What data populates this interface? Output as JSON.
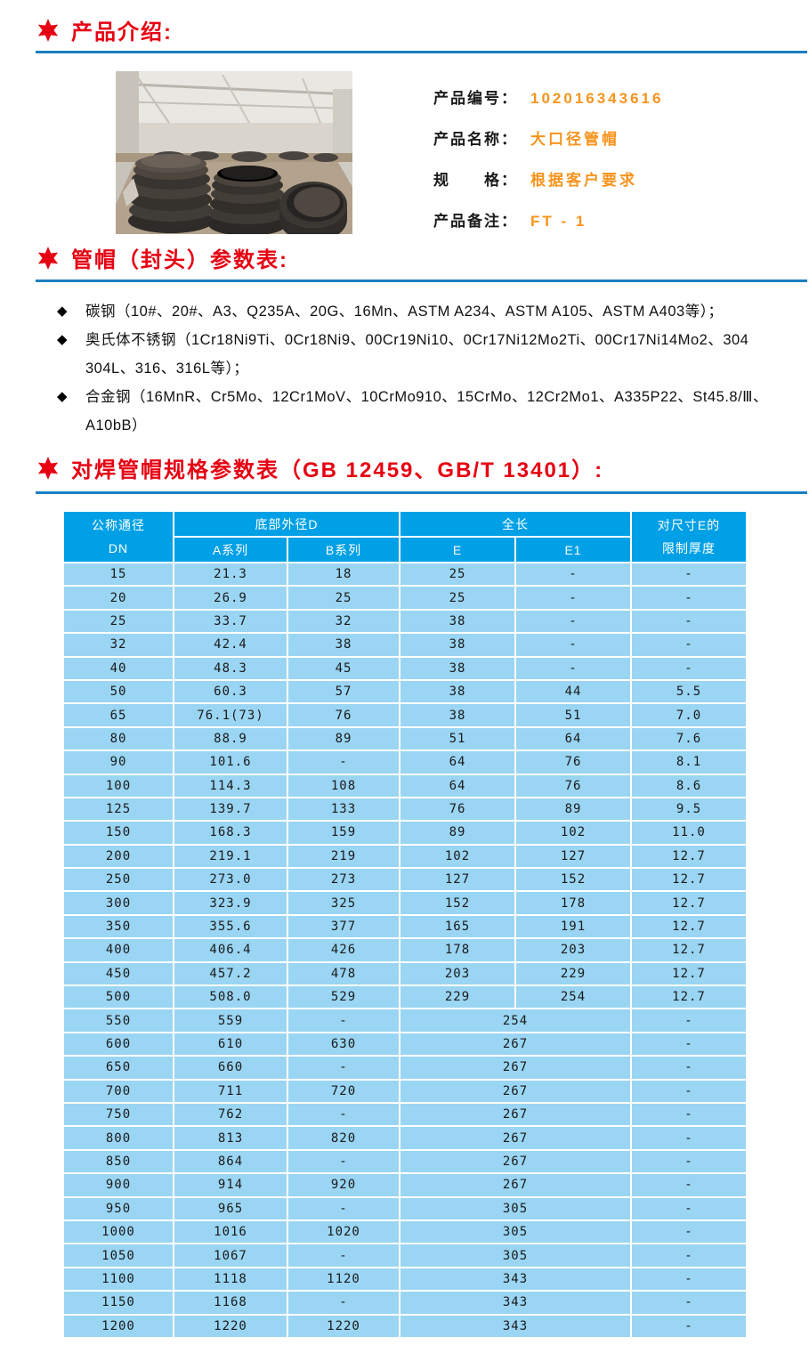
{
  "colors": {
    "accent_red": "#e60012",
    "rule_blue": "#1b7ec2",
    "value_orange": "#f7941d",
    "table_header_blue": "#00a0e6",
    "table_row_blue": "#9ad5f3"
  },
  "sections": {
    "intro": {
      "title": "产品介绍:"
    },
    "params": {
      "title": "管帽（封头）参数表:"
    },
    "spec": {
      "title": "对焊管帽规格参数表（GB 12459、GB/T 13401）:"
    }
  },
  "product": {
    "photo_alt": "warehouse-with-pipe-caps",
    "rows": [
      {
        "label": "产品编号：",
        "value": "102016343616"
      },
      {
        "label": "产品名称：",
        "value": "大口径管帽"
      },
      {
        "label": "规　　格：",
        "value": "根据客户要求"
      },
      {
        "label": "产品备注：",
        "value": "FT - 1"
      }
    ]
  },
  "bullets": [
    {
      "lines": [
        "碳钢（10#、20#、A3、Q235A、20G、16Mn、ASTM A234、ASTM A105、ASTM A403等）；"
      ]
    },
    {
      "lines": [
        "奥氏体不锈钢（1Cr18Ni9Ti、0Cr18Ni9、00Cr19Ni10、0Cr17Ni12Mo2Ti、00Cr17Ni14Mo2、304",
        "304L、316、316L等）；"
      ]
    },
    {
      "lines": [
        "合金钢（16MnR、Cr5Mo、12Cr1MoV、10CrMo910、15CrMo、12Cr2Mo1、A335P22、St45.8/Ⅲ、",
        "A10bB）"
      ]
    }
  ],
  "table": {
    "header": {
      "col_dn": [
        "公称通径",
        "DN"
      ],
      "group_d": "底部外径D",
      "a_series": "A系列",
      "b_series": "B系列",
      "group_len": "全长",
      "e": "E",
      "e1": "E1",
      "col_limit": [
        "对尺寸E的",
        "限制厚度"
      ]
    },
    "rows": [
      [
        "15",
        "21.3",
        "18",
        "25",
        "-",
        "-"
      ],
      [
        "20",
        "26.9",
        "25",
        "25",
        "-",
        "-"
      ],
      [
        "25",
        "33.7",
        "32",
        "38",
        "-",
        "-"
      ],
      [
        "32",
        "42.4",
        "38",
        "38",
        "-",
        "-"
      ],
      [
        "40",
        "48.3",
        "45",
        "38",
        "-",
        "-"
      ],
      [
        "50",
        "60.3",
        "57",
        "38",
        "44",
        "5.5"
      ],
      [
        "65",
        "76.1(73)",
        "76",
        "38",
        "51",
        "7.0"
      ],
      [
        "80",
        "88.9",
        "89",
        "51",
        "64",
        "7.6"
      ],
      [
        "90",
        "101.6",
        "-",
        "64",
        "76",
        "8.1"
      ],
      [
        "100",
        "114.3",
        "108",
        "64",
        "76",
        "8.6"
      ],
      [
        "125",
        "139.7",
        "133",
        "76",
        "89",
        "9.5"
      ],
      [
        "150",
        "168.3",
        "159",
        "89",
        "102",
        "11.0"
      ],
      [
        "200",
        "219.1",
        "219",
        "102",
        "127",
        "12.7"
      ],
      [
        "250",
        "273.0",
        "273",
        "127",
        "152",
        "12.7"
      ],
      [
        "300",
        "323.9",
        "325",
        "152",
        "178",
        "12.7"
      ],
      [
        "350",
        "355.6",
        "377",
        "165",
        "191",
        "12.7"
      ],
      [
        "400",
        "406.4",
        "426",
        "178",
        "203",
        "12.7"
      ],
      [
        "450",
        "457.2",
        "478",
        "203",
        "229",
        "12.7"
      ],
      [
        "500",
        "508.0",
        "529",
        "229",
        "254",
        "12.7"
      ],
      [
        "550",
        "559",
        "-",
        "254",
        "-"
      ],
      [
        "600",
        "610",
        "630",
        "267",
        "-"
      ],
      [
        "650",
        "660",
        "-",
        "267",
        "-"
      ],
      [
        "700",
        "711",
        "720",
        "267",
        "-"
      ],
      [
        "750",
        "762",
        "-",
        "267",
        "-"
      ],
      [
        "800",
        "813",
        "820",
        "267",
        "-"
      ],
      [
        "850",
        "864",
        "-",
        "267",
        "-"
      ],
      [
        "900",
        "914",
        "920",
        "267",
        "-"
      ],
      [
        "950",
        "965",
        "-",
        "305",
        "-"
      ],
      [
        "1000",
        "1016",
        "1020",
        "305",
        "-"
      ],
      [
        "1050",
        "1067",
        "-",
        "305",
        "-"
      ],
      [
        "1100",
        "1118",
        "1120",
        "343",
        "-"
      ],
      [
        "1150",
        "1168",
        "-",
        "343",
        "-"
      ],
      [
        "1200",
        "1220",
        "1220",
        "343",
        "-"
      ]
    ]
  }
}
